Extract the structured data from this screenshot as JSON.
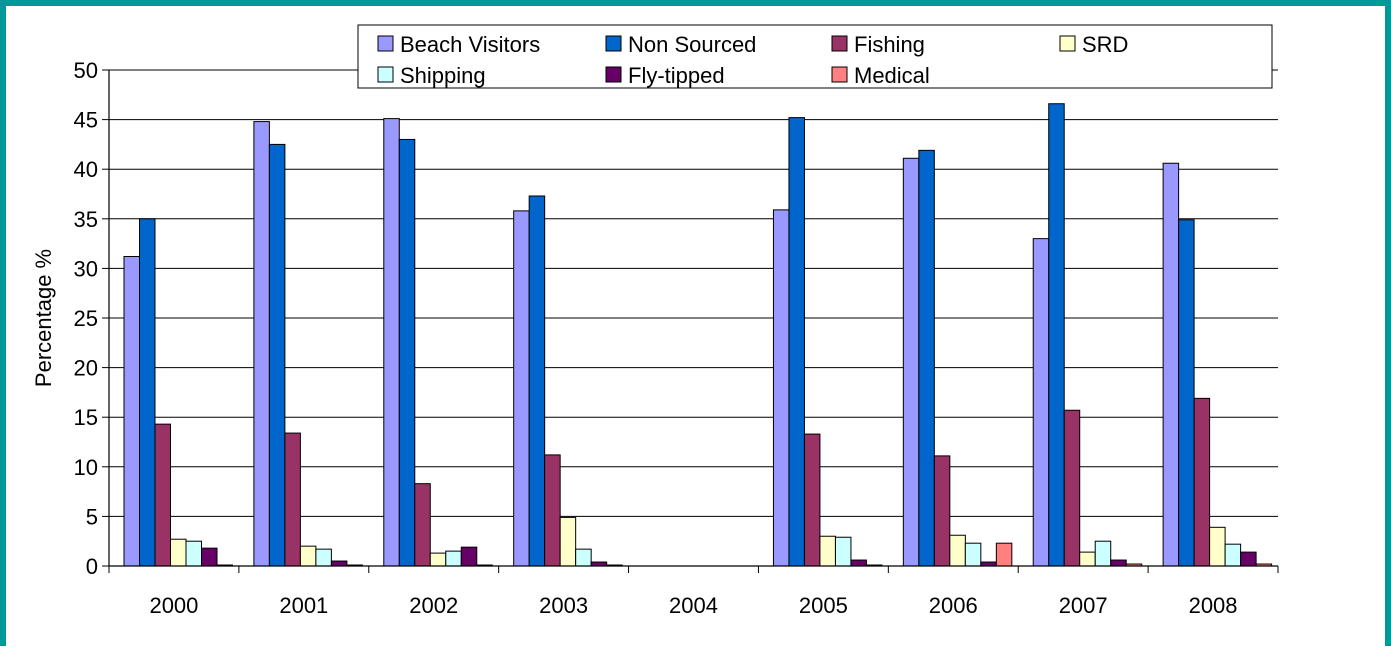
{
  "chart_data": {
    "type": "bar",
    "categories": [
      "2000",
      "2001",
      "2002",
      "2003",
      "2004",
      "2005",
      "2006",
      "2007",
      "2008"
    ],
    "ylabel": "Percentage %",
    "xlabel": "",
    "ylim": [
      0,
      50
    ],
    "yticks": [
      "0",
      "5",
      "10",
      "15",
      "20",
      "25",
      "30",
      "35",
      "40",
      "45",
      "50"
    ],
    "grid": true,
    "legend_position": "top",
    "series": [
      {
        "name": "Beach Visitors",
        "color": "#9999FF",
        "values": [
          31.2,
          44.8,
          45.1,
          35.8,
          0,
          35.9,
          41.1,
          33.0,
          40.6
        ]
      },
      {
        "name": "Non Sourced",
        "color": "#0066CC",
        "values": [
          35.0,
          42.5,
          43.0,
          37.3,
          0,
          45.2,
          41.9,
          46.6,
          34.9
        ]
      },
      {
        "name": "Fishing",
        "color": "#993366",
        "values": [
          14.3,
          13.4,
          8.3,
          11.2,
          0,
          13.3,
          11.1,
          15.7,
          16.9
        ]
      },
      {
        "name": "SRD",
        "color": "#FFFFCC",
        "values": [
          2.7,
          2.0,
          1.3,
          4.9,
          0,
          3.0,
          3.1,
          1.4,
          3.9
        ]
      },
      {
        "name": "Shipping",
        "color": "#CCFFFF",
        "values": [
          2.5,
          1.7,
          1.5,
          1.7,
          0,
          2.9,
          2.3,
          2.5,
          2.2
        ]
      },
      {
        "name": "Fly-tipped",
        "color": "#660066",
        "values": [
          1.8,
          0.5,
          1.9,
          0.4,
          0,
          0.6,
          0.4,
          0.6,
          1.4
        ]
      },
      {
        "name": "Medical",
        "color": "#FF8080",
        "values": [
          0.1,
          0.1,
          0.1,
          0.1,
          0,
          0.1,
          2.3,
          0.2,
          0.2
        ]
      }
    ]
  }
}
